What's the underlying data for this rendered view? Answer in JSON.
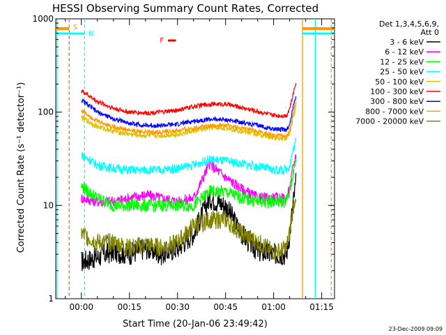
{
  "chart_data": {
    "type": "line",
    "title": "HESSI Observing Summary Count Rates, Corrected",
    "xlabel": "Start Time (20-Jan-06 23:49:42)",
    "ylabel": "Corrected Count Rate (s⁻¹ detector⁻¹)",
    "y_scale": "log",
    "ylim": [
      1,
      1000
    ],
    "xlim_minutes": [
      -8,
      79
    ],
    "x_ticks": [
      {
        "label": "00:00",
        "minutes": 0
      },
      {
        "label": "00:15",
        "minutes": 15
      },
      {
        "label": "00:30",
        "minutes": 30
      },
      {
        "label": "00:45",
        "minutes": 45
      },
      {
        "label": "01:00",
        "minutes": 60
      },
      {
        "label": "01:15",
        "minutes": 75
      }
    ],
    "y_ticks": [
      {
        "label": "1",
        "value": 1
      },
      {
        "label": "10",
        "value": 10
      },
      {
        "label": "100",
        "value": 100
      },
      {
        "label": "1000",
        "value": 1000
      }
    ],
    "legend": {
      "header_line1": "Det 1,3,4,5,6,9,",
      "header_line2": "Att 0",
      "placement": "right"
    },
    "series": [
      {
        "name": "3 - 6 keV",
        "color": "#000000",
        "x": [
          0,
          5,
          10,
          15,
          20,
          25,
          30,
          35,
          40,
          45,
          50,
          55,
          60,
          62,
          64,
          65,
          66,
          67
        ],
        "y": [
          2.5,
          2.8,
          3.2,
          3,
          3.5,
          3,
          3.5,
          5,
          12,
          10,
          5,
          3.2,
          3,
          3,
          3,
          5,
          10,
          18
        ]
      },
      {
        "name": "6 - 12 keV",
        "color": "#ff00ff",
        "x": [
          0,
          5,
          10,
          15,
          20,
          25,
          30,
          35,
          40,
          45,
          50,
          55,
          60,
          62,
          64,
          65,
          66,
          67
        ],
        "y": [
          12,
          11,
          11,
          12,
          13,
          12,
          11,
          12,
          28,
          20,
          15,
          12,
          12,
          12,
          12,
          15,
          25,
          35
        ]
      },
      {
        "name": "12 - 25 keV",
        "color": "#00ff00",
        "x": [
          0,
          5,
          10,
          15,
          20,
          25,
          30,
          35,
          40,
          45,
          50,
          55,
          60,
          62,
          64,
          65,
          66,
          67
        ],
        "y": [
          16,
          12,
          10,
          10,
          10,
          10,
          10,
          10,
          14,
          14,
          12,
          11,
          11,
          11,
          11,
          14,
          22,
          30
        ]
      },
      {
        "name": "25 - 50 keV",
        "color": "#00ffff",
        "x": [
          0,
          5,
          10,
          15,
          20,
          25,
          30,
          35,
          40,
          45,
          50,
          55,
          60,
          62,
          64,
          65,
          66,
          67
        ],
        "y": [
          35,
          27,
          25,
          24,
          24,
          24,
          25,
          27,
          31,
          30,
          28,
          26,
          24,
          24,
          24,
          27,
          38,
          50
        ]
      },
      {
        "name": "50 - 100 keV",
        "color": "#e0c000",
        "x": [
          0,
          5,
          10,
          15,
          20,
          25,
          30,
          35,
          40,
          45,
          50,
          55,
          60,
          62,
          64,
          65,
          66,
          67
        ],
        "y": [
          88,
          70,
          63,
          58,
          56,
          56,
          58,
          63,
          68,
          68,
          63,
          58,
          53,
          53,
          53,
          58,
          85,
          115
        ]
      },
      {
        "name": "100 - 300 keV",
        "color": "#ff0000",
        "x": [
          0,
          5,
          10,
          15,
          20,
          25,
          30,
          35,
          40,
          45,
          50,
          55,
          60,
          62,
          64,
          65,
          66,
          67
        ],
        "y": [
          170,
          130,
          110,
          100,
          98,
          100,
          105,
          115,
          122,
          122,
          112,
          102,
          92,
          92,
          92,
          110,
          150,
          215
        ]
      },
      {
        "name": "300 - 800 keV",
        "color": "#0000ff",
        "x": [
          0,
          5,
          10,
          15,
          20,
          25,
          30,
          35,
          40,
          45,
          50,
          55,
          60,
          62,
          64,
          65,
          66,
          67
        ],
        "y": [
          135,
          100,
          85,
          76,
          72,
          72,
          74,
          80,
          84,
          83,
          78,
          72,
          66,
          65,
          65,
          72,
          110,
          150
        ]
      },
      {
        "name": "800 - 7000 keV",
        "color": "#ff9900",
        "x": [
          0,
          5,
          10,
          15,
          20,
          25,
          30,
          35,
          40,
          45,
          50,
          55,
          60,
          62,
          64,
          65,
          66,
          67
        ],
        "y": [
          105,
          80,
          70,
          64,
          61,
          61,
          63,
          68,
          72,
          72,
          67,
          62,
          56,
          56,
          56,
          62,
          92,
          128
        ]
      },
      {
        "name": "7000 - 20000 keV",
        "color": "#808000",
        "x": [
          0,
          5,
          10,
          15,
          20,
          25,
          30,
          35,
          40,
          45,
          50,
          55,
          60,
          62,
          64,
          65,
          66,
          67
        ],
        "y": [
          5,
          4,
          4,
          3.5,
          3.8,
          3.5,
          4,
          6,
          7,
          7,
          5,
          4,
          3.2,
          3.2,
          3.5,
          5,
          9,
          14
        ]
      }
    ],
    "annotations": [
      {
        "text": "S",
        "color": "#ff9900"
      },
      {
        "text": "N",
        "color": "#00ffff"
      },
      {
        "text": "F",
        "color": "#ff0000"
      }
    ],
    "vertical_markers": [
      {
        "minutes": -3.8,
        "color": "#ff6633",
        "style": "dashed"
      },
      {
        "minutes": 1.0,
        "color": "#00ffff",
        "style": "dashed"
      },
      {
        "minutes": -7.6,
        "color": "#00ffff",
        "style": "solid"
      },
      {
        "minutes": 69,
        "color": "#ff9900",
        "style": "solid"
      },
      {
        "minutes": 73,
        "color": "#00ffff",
        "style": "solid"
      },
      {
        "minutes": 78,
        "color": "#ff9900",
        "style": "dashed"
      }
    ],
    "footer_date": "23-Dec-2009 09:09"
  }
}
